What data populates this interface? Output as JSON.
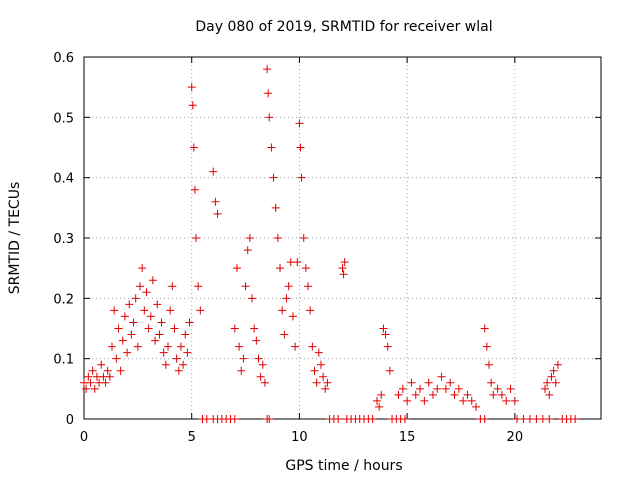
{
  "chart_data": {
    "type": "scatter",
    "title": "Day 080 of 2019, SRMTID for receiver wlal",
    "xlabel": "GPS time / hours",
    "ylabel": "SRMTID / TECUs",
    "xlim": [
      0,
      24
    ],
    "ylim": [
      0,
      0.6
    ],
    "xticks": [
      0,
      5,
      10,
      15,
      20
    ],
    "yticks": [
      0,
      0.1,
      0.2,
      0.3,
      0.4,
      0.5,
      0.6
    ],
    "xtick_labels": [
      "0",
      "5",
      "10",
      "15",
      "20"
    ],
    "ytick_labels": [
      "0",
      "0.1",
      "0.2",
      "0.3",
      "0.4",
      "0.5",
      "0.6"
    ],
    "grid": true,
    "marker": "+",
    "color": "#e00000",
    "series": [
      {
        "name": "SRMTID",
        "points": [
          [
            0.0,
            0.06
          ],
          [
            0.1,
            0.05
          ],
          [
            0.2,
            0.07
          ],
          [
            0.3,
            0.06
          ],
          [
            0.4,
            0.08
          ],
          [
            0.5,
            0.05
          ],
          [
            0.6,
            0.07
          ],
          [
            0.7,
            0.06
          ],
          [
            0.8,
            0.09
          ],
          [
            0.9,
            0.07
          ],
          [
            1.0,
            0.06
          ],
          [
            1.1,
            0.08
          ],
          [
            1.2,
            0.07
          ],
          [
            1.3,
            0.12
          ],
          [
            1.4,
            0.18
          ],
          [
            1.5,
            0.1
          ],
          [
            1.6,
            0.15
          ],
          [
            1.7,
            0.08
          ],
          [
            1.8,
            0.13
          ],
          [
            1.9,
            0.17
          ],
          [
            2.0,
            0.11
          ],
          [
            2.1,
            0.19
          ],
          [
            2.2,
            0.14
          ],
          [
            2.3,
            0.16
          ],
          [
            2.4,
            0.2
          ],
          [
            2.5,
            0.12
          ],
          [
            2.6,
            0.22
          ],
          [
            2.7,
            0.25
          ],
          [
            2.8,
            0.18
          ],
          [
            2.9,
            0.21
          ],
          [
            3.0,
            0.15
          ],
          [
            3.1,
            0.17
          ],
          [
            3.2,
            0.23
          ],
          [
            3.3,
            0.13
          ],
          [
            3.4,
            0.19
          ],
          [
            3.5,
            0.14
          ],
          [
            3.6,
            0.16
          ],
          [
            3.7,
            0.11
          ],
          [
            3.8,
            0.09
          ],
          [
            3.9,
            0.12
          ],
          [
            4.0,
            0.18
          ],
          [
            4.1,
            0.22
          ],
          [
            4.2,
            0.15
          ],
          [
            4.3,
            0.1
          ],
          [
            4.4,
            0.08
          ],
          [
            4.5,
            0.12
          ],
          [
            4.6,
            0.09
          ],
          [
            4.7,
            0.14
          ],
          [
            4.8,
            0.11
          ],
          [
            4.9,
            0.16
          ],
          [
            5.0,
            0.55
          ],
          [
            5.05,
            0.52
          ],
          [
            5.1,
            0.45
          ],
          [
            5.15,
            0.38
          ],
          [
            5.2,
            0.3
          ],
          [
            5.3,
            0.22
          ],
          [
            5.4,
            0.18
          ],
          [
            5.5,
            0.0
          ],
          [
            5.7,
            0.0
          ],
          [
            6.0,
            0.0
          ],
          [
            6.2,
            0.0
          ],
          [
            6.4,
            0.0
          ],
          [
            6.6,
            0.0
          ],
          [
            6.8,
            0.0
          ],
          [
            7.0,
            0.0
          ],
          [
            6.0,
            0.41
          ],
          [
            6.1,
            0.36
          ],
          [
            6.2,
            0.34
          ],
          [
            7.0,
            0.15
          ],
          [
            7.1,
            0.25
          ],
          [
            7.2,
            0.12
          ],
          [
            7.3,
            0.08
          ],
          [
            7.4,
            0.1
          ],
          [
            7.5,
            0.22
          ],
          [
            7.6,
            0.28
          ],
          [
            7.7,
            0.3
          ],
          [
            7.8,
            0.2
          ],
          [
            7.9,
            0.15
          ],
          [
            8.0,
            0.13
          ],
          [
            8.1,
            0.1
          ],
          [
            8.2,
            0.07
          ],
          [
            8.3,
            0.09
          ],
          [
            8.4,
            0.06
          ],
          [
            8.5,
            0.0
          ],
          [
            8.6,
            0.0
          ],
          [
            8.5,
            0.58
          ],
          [
            8.55,
            0.54
          ],
          [
            8.6,
            0.5
          ],
          [
            8.7,
            0.45
          ],
          [
            8.8,
            0.4
          ],
          [
            8.9,
            0.35
          ],
          [
            9.0,
            0.3
          ],
          [
            9.1,
            0.25
          ],
          [
            9.2,
            0.18
          ],
          [
            9.3,
            0.14
          ],
          [
            9.4,
            0.2
          ],
          [
            9.5,
            0.22
          ],
          [
            9.6,
            0.26
          ],
          [
            9.7,
            0.17
          ],
          [
            9.8,
            0.12
          ],
          [
            9.9,
            0.26
          ],
          [
            10.0,
            0.49
          ],
          [
            10.05,
            0.45
          ],
          [
            10.1,
            0.4
          ],
          [
            10.2,
            0.3
          ],
          [
            10.3,
            0.25
          ],
          [
            10.4,
            0.22
          ],
          [
            10.5,
            0.18
          ],
          [
            10.6,
            0.12
          ],
          [
            10.7,
            0.08
          ],
          [
            10.8,
            0.06
          ],
          [
            10.9,
            0.11
          ],
          [
            11.0,
            0.09
          ],
          [
            11.1,
            0.07
          ],
          [
            11.2,
            0.05
          ],
          [
            11.3,
            0.06
          ],
          [
            11.4,
            0.0
          ],
          [
            11.6,
            0.0
          ],
          [
            11.8,
            0.0
          ],
          [
            12.0,
            0.25
          ],
          [
            12.05,
            0.24
          ],
          [
            12.1,
            0.26
          ],
          [
            12.2,
            0.0
          ],
          [
            12.4,
            0.0
          ],
          [
            12.6,
            0.0
          ],
          [
            12.8,
            0.0
          ],
          [
            13.0,
            0.0
          ],
          [
            13.2,
            0.0
          ],
          [
            13.4,
            0.0
          ],
          [
            13.6,
            0.03
          ],
          [
            13.7,
            0.02
          ],
          [
            13.8,
            0.04
          ],
          [
            13.9,
            0.15
          ],
          [
            14.0,
            0.14
          ],
          [
            14.1,
            0.12
          ],
          [
            14.2,
            0.08
          ],
          [
            14.3,
            0.0
          ],
          [
            14.5,
            0.0
          ],
          [
            14.7,
            0.0
          ],
          [
            14.9,
            0.0
          ],
          [
            14.6,
            0.04
          ],
          [
            14.8,
            0.05
          ],
          [
            15.0,
            0.03
          ],
          [
            15.2,
            0.06
          ],
          [
            15.4,
            0.04
          ],
          [
            15.6,
            0.05
          ],
          [
            15.8,
            0.03
          ],
          [
            16.0,
            0.06
          ],
          [
            16.2,
            0.04
          ],
          [
            16.4,
            0.05
          ],
          [
            16.6,
            0.07
          ],
          [
            16.8,
            0.05
          ],
          [
            17.0,
            0.06
          ],
          [
            17.2,
            0.04
          ],
          [
            17.4,
            0.05
          ],
          [
            17.6,
            0.03
          ],
          [
            17.8,
            0.04
          ],
          [
            18.0,
            0.03
          ],
          [
            18.2,
            0.02
          ],
          [
            18.4,
            0.0
          ],
          [
            18.6,
            0.0
          ],
          [
            18.6,
            0.15
          ],
          [
            18.7,
            0.12
          ],
          [
            18.8,
            0.09
          ],
          [
            18.9,
            0.06
          ],
          [
            19.0,
            0.04
          ],
          [
            19.2,
            0.05
          ],
          [
            19.4,
            0.04
          ],
          [
            19.6,
            0.03
          ],
          [
            19.8,
            0.05
          ],
          [
            20.0,
            0.03
          ],
          [
            20.1,
            0.0
          ],
          [
            20.4,
            0.0
          ],
          [
            20.7,
            0.0
          ],
          [
            21.0,
            0.0
          ],
          [
            21.3,
            0.0
          ],
          [
            21.6,
            0.0
          ],
          [
            21.4,
            0.05
          ],
          [
            21.5,
            0.06
          ],
          [
            21.6,
            0.04
          ],
          [
            21.7,
            0.07
          ],
          [
            21.8,
            0.08
          ],
          [
            21.9,
            0.06
          ],
          [
            22.0,
            0.09
          ],
          [
            22.2,
            0.0
          ],
          [
            22.4,
            0.0
          ],
          [
            22.6,
            0.0
          ],
          [
            22.8,
            0.0
          ]
        ]
      }
    ]
  }
}
